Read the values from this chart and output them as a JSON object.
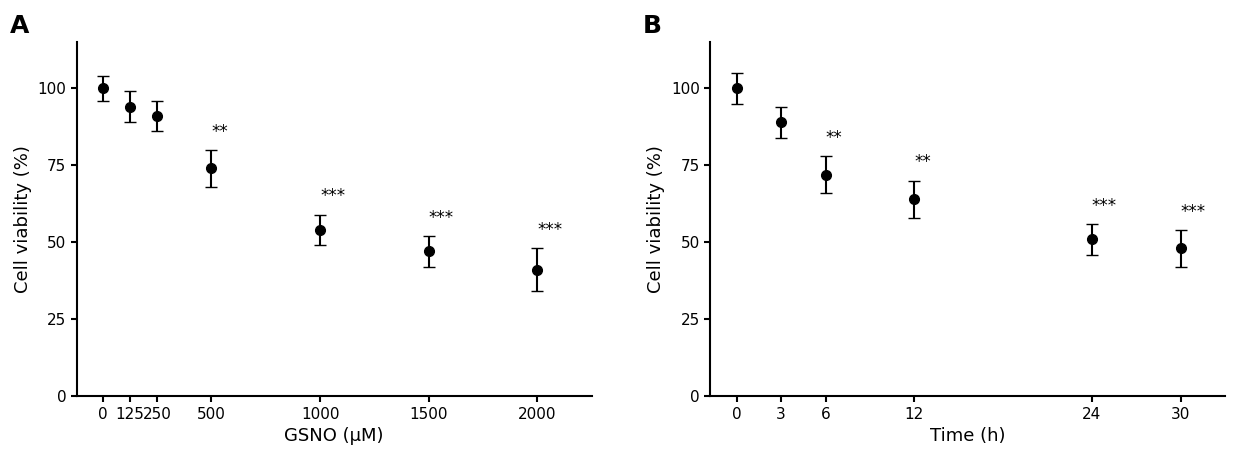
{
  "panel_A": {
    "label": "A",
    "x": [
      0,
      125,
      250,
      500,
      1000,
      1500,
      2000
    ],
    "y": [
      100,
      94,
      91,
      74,
      54,
      47,
      41
    ],
    "yerr": [
      4,
      5,
      5,
      6,
      5,
      5,
      7
    ],
    "xlabel": "GSNO (μM)",
    "ylabel": "Cell viability (%)",
    "annotations": [
      {
        "xi": 3,
        "text": "**"
      },
      {
        "xi": 4,
        "text": "***"
      },
      {
        "xi": 5,
        "text": "***"
      },
      {
        "xi": 6,
        "text": "***"
      }
    ],
    "xticks": [
      0,
      125,
      250,
      500,
      1000,
      1500,
      2000
    ],
    "yticks": [
      0,
      25,
      50,
      75,
      100
    ],
    "ylim": [
      0,
      115
    ],
    "xlim": [
      -120,
      2250
    ]
  },
  "panel_B": {
    "label": "B",
    "x": [
      0,
      3,
      6,
      12,
      24,
      30
    ],
    "y": [
      100,
      89,
      72,
      64,
      51,
      48
    ],
    "yerr": [
      5,
      5,
      6,
      6,
      5,
      6
    ],
    "xlabel": "Time (h)",
    "ylabel": "Cell viability (%)",
    "annotations": [
      {
        "xi": 2,
        "text": "**"
      },
      {
        "xi": 3,
        "text": "**"
      },
      {
        "xi": 4,
        "text": "***"
      },
      {
        "xi": 5,
        "text": "***"
      }
    ],
    "xticks": [
      0,
      3,
      6,
      12,
      24,
      30
    ],
    "yticks": [
      0,
      25,
      50,
      75,
      100
    ],
    "ylim": [
      0,
      115
    ],
    "xlim": [
      -1.8,
      33
    ]
  },
  "line_color": "#000000",
  "marker": "o",
  "markersize": 7,
  "linewidth": 1.8,
  "capsize": 4,
  "elinewidth": 1.5,
  "label_fontsize": 13,
  "tick_fontsize": 11,
  "panel_label_fontsize": 18,
  "annotation_fontsize": 12,
  "background_color": "#ffffff"
}
